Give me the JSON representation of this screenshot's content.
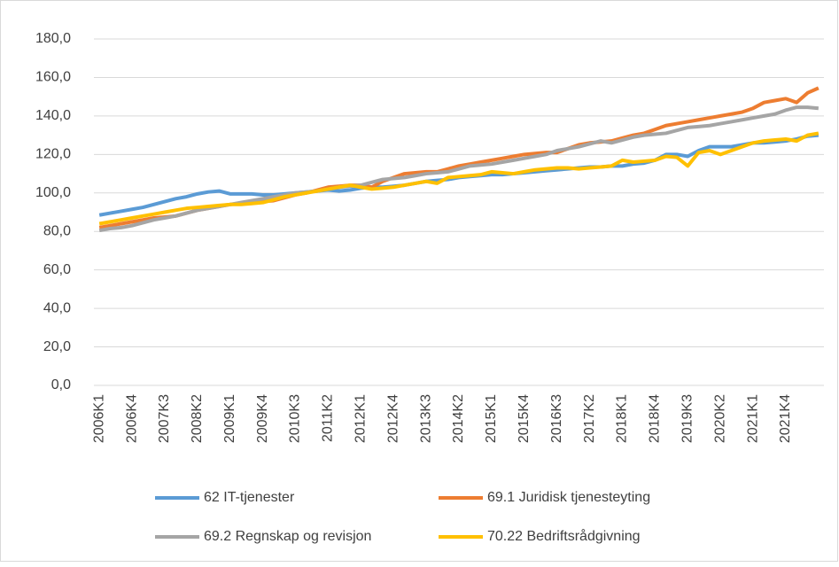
{
  "chart_data": {
    "type": "line",
    "categories": [
      "2006K1",
      null,
      null,
      "2006K4",
      null,
      null,
      "2007K3",
      null,
      null,
      "2008K2",
      null,
      null,
      "2009K1",
      null,
      null,
      "2009K4",
      null,
      null,
      "2010K3",
      null,
      null,
      "2011K2",
      null,
      null,
      "2012K1",
      null,
      null,
      "2012K4",
      null,
      null,
      "2013K3",
      null,
      null,
      "2014K2",
      null,
      null,
      "2015K1",
      null,
      null,
      "2015K4",
      null,
      null,
      "2016K3",
      null,
      null,
      "2017K2",
      null,
      null,
      "2018K1",
      null,
      null,
      "2018K4",
      null,
      null,
      "2019K3",
      null,
      null,
      "2020K2",
      null,
      null,
      "2021K1",
      null,
      null,
      "2021K4",
      null,
      null,
      null
    ],
    "series": [
      {
        "name": "62 IT-tjenester",
        "color": "#5b9bd5",
        "values": [
          88.5,
          89.5,
          90.5,
          91.5,
          92.5,
          94,
          95.5,
          97,
          98,
          99.5,
          100.5,
          101,
          99.5,
          99.5,
          99.5,
          99,
          99,
          99.5,
          100,
          100.5,
          101,
          101.5,
          101,
          101.5,
          102.5,
          103,
          103,
          103.5,
          104,
          105,
          106,
          106.5,
          107,
          108,
          108.5,
          109,
          109.5,
          109.5,
          110,
          110.5,
          111,
          111.5,
          112,
          112.5,
          113,
          113.5,
          113.5,
          114,
          114,
          115,
          115.5,
          117,
          120,
          120,
          119,
          122,
          124,
          124,
          124,
          125,
          126,
          126,
          126.5,
          127,
          128,
          129.5,
          130
        ]
      },
      {
        "name": "69.1 Juridisk tjenesteyting",
        "color": "#ed7d31",
        "values": [
          82,
          83,
          84,
          85,
          86,
          87,
          87.5,
          88,
          89.5,
          91,
          92,
          93,
          94,
          94.5,
          95,
          95.5,
          96,
          97.5,
          99,
          100,
          101.5,
          103,
          103.5,
          104,
          104,
          103,
          106,
          108,
          110,
          110.5,
          111,
          111,
          112.5,
          114,
          115,
          116,
          117,
          118,
          119,
          120,
          120.5,
          121,
          121,
          123,
          125,
          126,
          126.5,
          127,
          128.5,
          130,
          131,
          133,
          135,
          136,
          137,
          138,
          139,
          140,
          141,
          142,
          144,
          147,
          148,
          149,
          147,
          152,
          154.5
        ]
      },
      {
        "name": "69.2 Regnskap og revisjon",
        "color": "#a5a5a5",
        "values": [
          80.5,
          81.5,
          82,
          83,
          84.5,
          86,
          87,
          88,
          89.5,
          91,
          92,
          93,
          94,
          95,
          96,
          97,
          98,
          99,
          100,
          100.5,
          101,
          102,
          103,
          103.5,
          104,
          105.5,
          107,
          107.5,
          108,
          109,
          110,
          110.5,
          111,
          112.5,
          114,
          114.5,
          115,
          116,
          117,
          118,
          119,
          120,
          122,
          123,
          124,
          125.5,
          127,
          126,
          127.5,
          129,
          130,
          130.5,
          131,
          132.5,
          134,
          134.5,
          135,
          136,
          137,
          138,
          139,
          140,
          141,
          143,
          144.5,
          144.5,
          144
        ]
      },
      {
        "name": "70.22 Bedriftsrådgivning",
        "color": "#ffc000",
        "values": [
          84,
          85,
          86,
          87,
          88,
          89,
          90,
          91,
          92,
          92.5,
          93,
          93.5,
          94,
          94,
          94.5,
          95,
          96.5,
          98,
          99,
          100,
          101,
          102,
          103,
          104,
          103,
          102,
          102.5,
          103,
          104,
          105,
          106,
          105,
          108,
          108.5,
          109,
          109.5,
          111,
          110.5,
          110,
          111,
          112,
          112.5,
          113,
          113,
          112.5,
          113,
          113.5,
          114,
          117,
          116,
          116.5,
          117,
          119,
          118.5,
          114,
          121,
          122,
          120,
          122,
          124,
          126,
          127,
          127.5,
          128,
          127,
          130,
          131
        ]
      }
    ],
    "ylim": [
      0,
      180
    ],
    "yticks": [
      {
        "value": 0,
        "label": "0,0"
      },
      {
        "value": 20,
        "label": "20,0"
      },
      {
        "value": 40,
        "label": "40,0"
      },
      {
        "value": 60,
        "label": "60,0"
      },
      {
        "value": 80,
        "label": "80,0"
      },
      {
        "value": 100,
        "label": "100,0"
      },
      {
        "value": 120,
        "label": "120,0"
      },
      {
        "value": 140,
        "label": "140,0"
      },
      {
        "value": 160,
        "label": "160,0"
      },
      {
        "value": 180,
        "label": "180,0"
      }
    ],
    "grid": true,
    "legend": "bottom"
  }
}
